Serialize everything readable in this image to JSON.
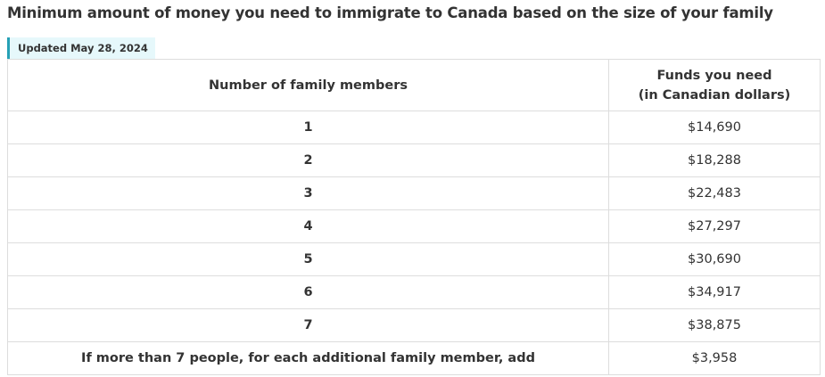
{
  "title": "Minimum amount of money you need to immigrate to Canada based on the size of your family",
  "updated": "Updated May 28, 2024",
  "table": {
    "header": [
      [
        "Number of family members"
      ],
      [
        "Funds you need",
        "(in Canadian dollars)"
      ]
    ],
    "rows": [
      [
        "1",
        "$14,690"
      ],
      [
        "2",
        "$18,288"
      ],
      [
        "3",
        "$22,483"
      ],
      [
        "4",
        "$27,297"
      ],
      [
        "5",
        "$30,690"
      ],
      [
        "6",
        "$34,917"
      ],
      [
        "7",
        "$38,875"
      ],
      [
        "If more than 7 people, for each additional family member, add",
        "$3,958"
      ]
    ]
  }
}
